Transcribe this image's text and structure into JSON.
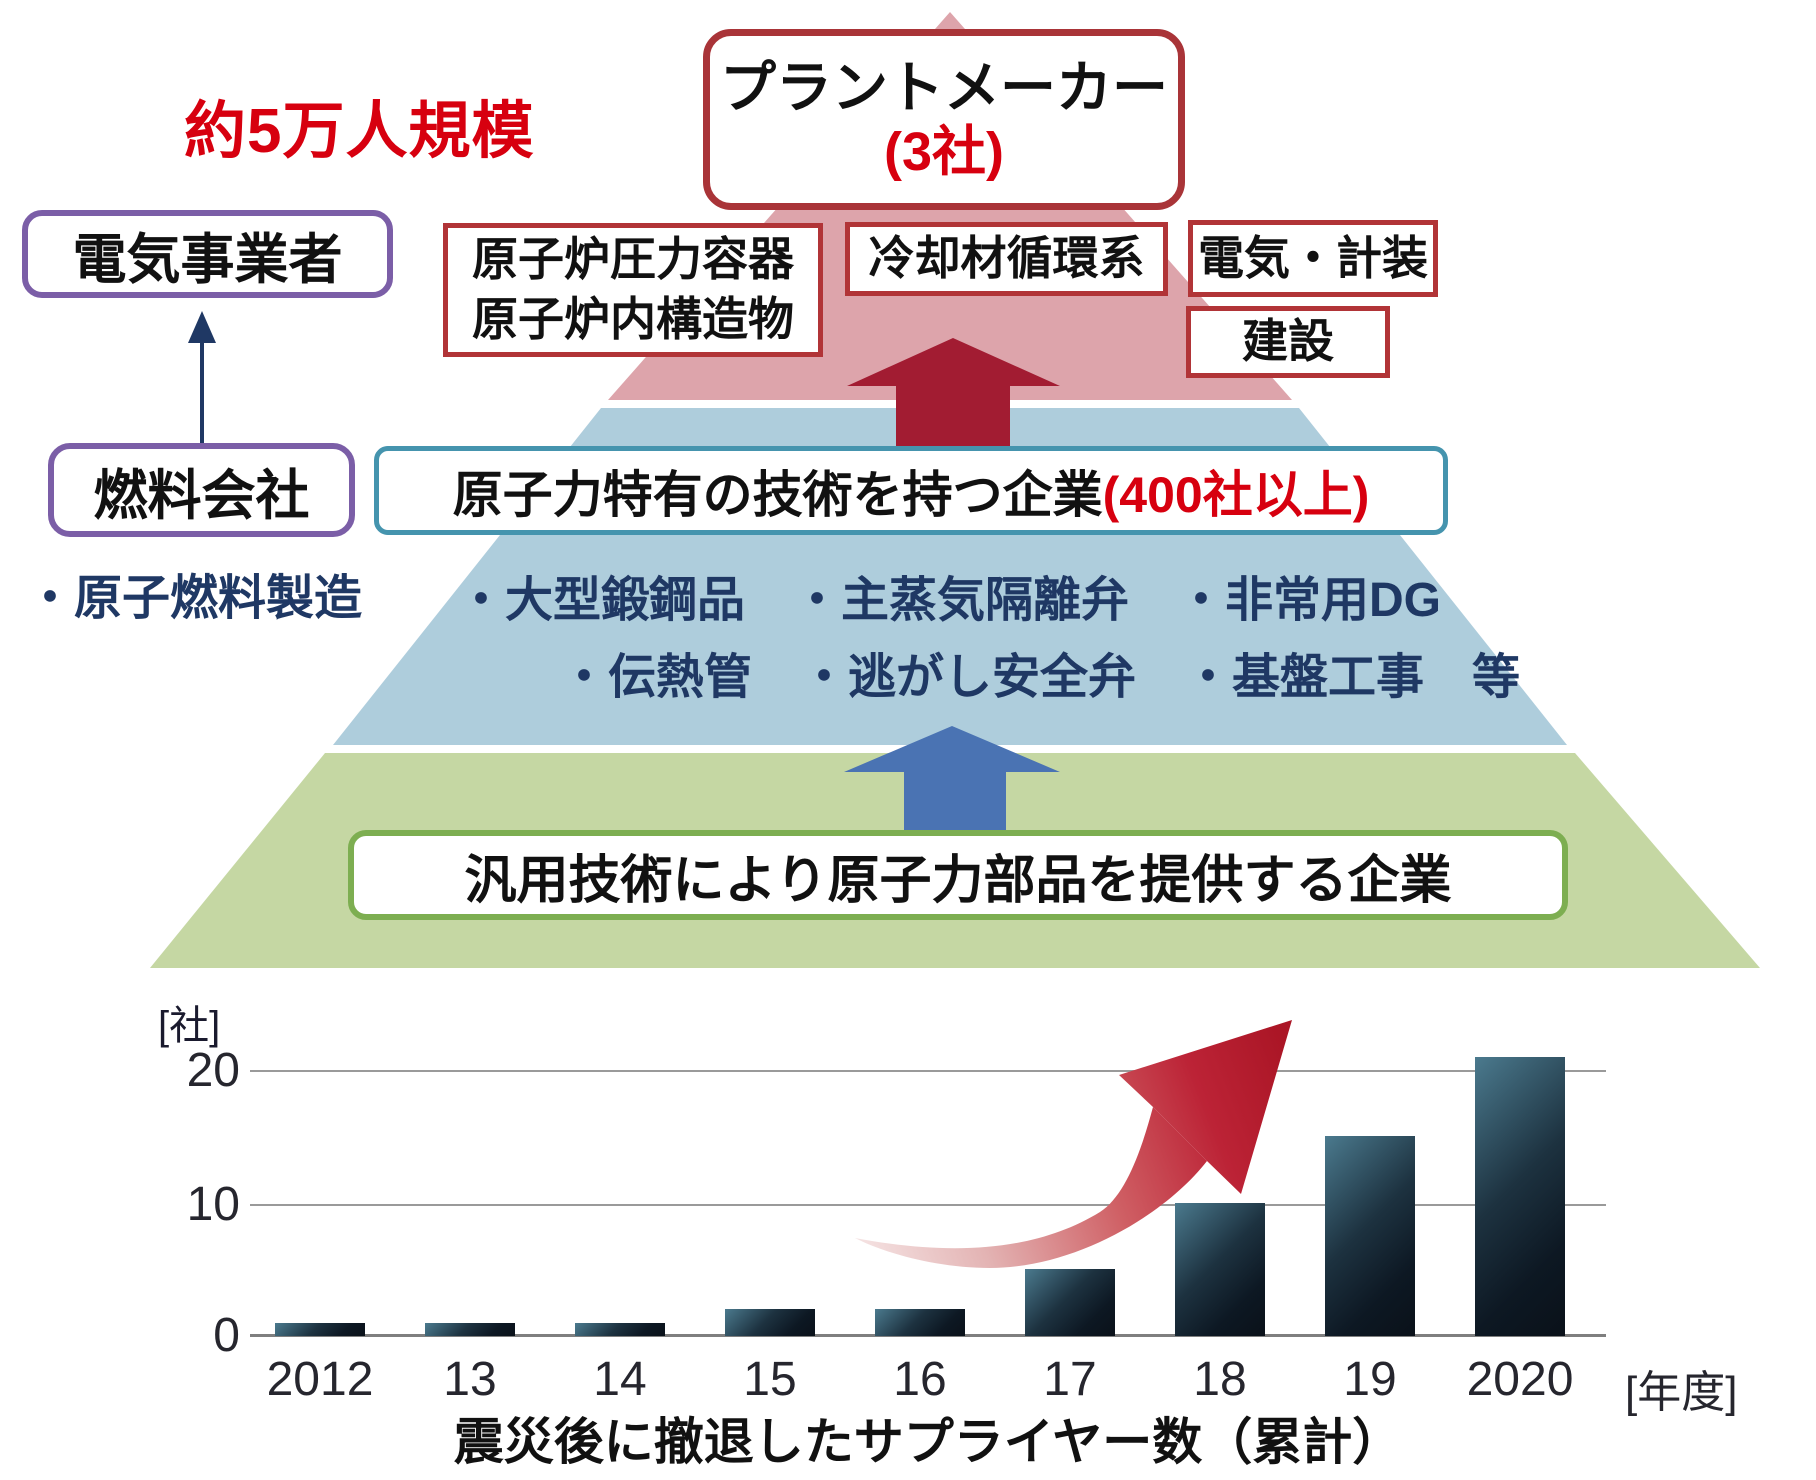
{
  "header": {
    "scale_note": "約5万人規模"
  },
  "actors": {
    "utility": "電気事業者",
    "fuel_company": "燃料会社",
    "fuel_note": "・原子燃料製造"
  },
  "pyramid": {
    "tier1": {
      "title": "プラントメーカー",
      "count": "(3社)",
      "box_reactor_line1": "原子炉圧力容器",
      "box_reactor_line2": "原子炉内構造物",
      "box_coolant": "冷却材循環系",
      "box_electric": "電気・計装",
      "box_construction": "建設"
    },
    "tier2": {
      "heading": "原子力特有の技術を持つ企業",
      "heading_count": "(400社以上)",
      "items_row1": "・大型鍛鋼品　・主蒸気隔離弁　・非常用DG",
      "items_row2": "・伝熱管　・逃がし安全弁　・基盤工事　等"
    },
    "tier3": {
      "heading": "汎用技術により原子力部品を提供する企業"
    }
  },
  "colors": {
    "accent_red_text": "#d7000f",
    "band_top_pink": "#dda4ab",
    "band_mid_blue": "#aecddc",
    "band_bot_green": "#c5d7a3",
    "block_arrow_red": "#a21c32",
    "block_arrow_blue": "#4a73b3",
    "navy_text": "#1f3864",
    "purple_border": "#7b5ea7",
    "red_border": "#b13437",
    "teal_border": "#4594ae",
    "green_border": "#7dae51"
  },
  "chart_data": {
    "type": "bar",
    "title": "震災後に撤退したサプライヤー数（累計）",
    "categories": [
      "2012",
      "13",
      "14",
      "15",
      "16",
      "17",
      "18",
      "19",
      "2020"
    ],
    "values": [
      1,
      1,
      1,
      2,
      2,
      5,
      10,
      15,
      21
    ],
    "y_unit": "[社]",
    "x_unit": "[年度]",
    "ylim": [
      0,
      22
    ],
    "ytick_labels": [
      "20",
      "10",
      "0"
    ],
    "grid": "horizontal gridlines at 0, 10, 20",
    "annotation": "red upward swoosh trend arrow"
  }
}
